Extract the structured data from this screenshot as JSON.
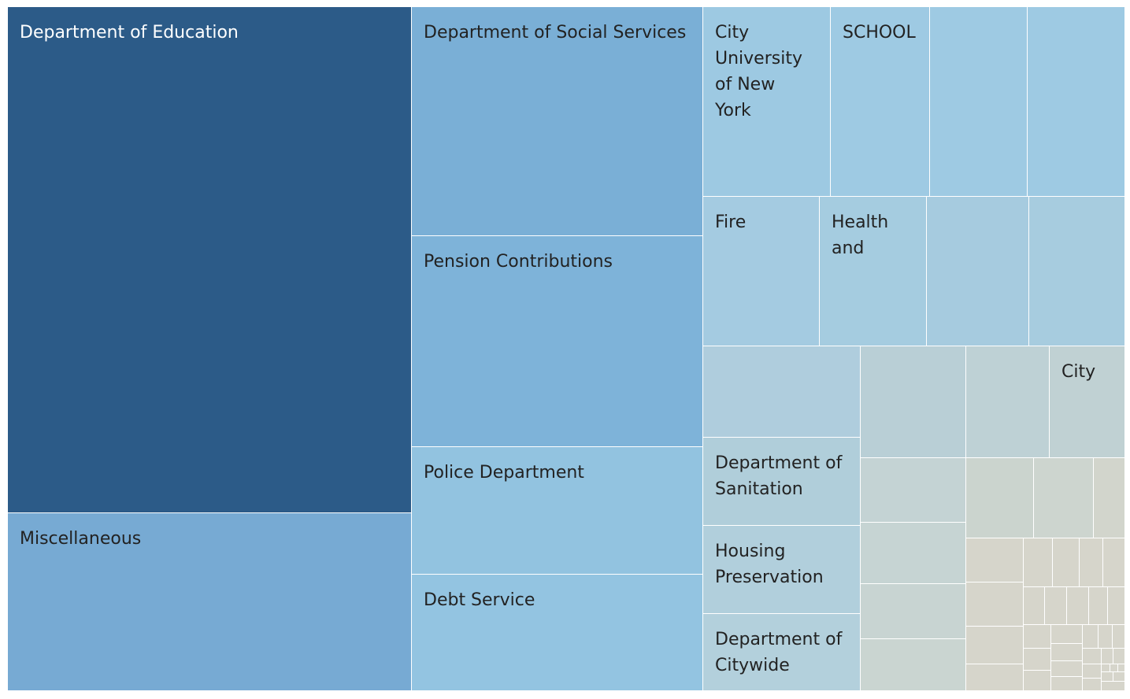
{
  "chart_data": {
    "type": "treemap",
    "title": "",
    "legend": "none",
    "items": [
      {
        "label": "Department of Education",
        "color": "#2c5b88",
        "text_color": "light",
        "lines": [
          "Department of Education"
        ]
      },
      {
        "label": "Miscellaneous",
        "color": "#77aad3",
        "text_color": "dark",
        "lines": [
          "Miscellaneous"
        ]
      },
      {
        "label": "Department of Social Services",
        "color": "#7aafd6",
        "text_color": "dark",
        "lines": [
          "Department of Social Services"
        ]
      },
      {
        "label": "Pension Contributions",
        "color": "#7eb3d9",
        "text_color": "dark",
        "lines": [
          "Pension Contributions"
        ]
      },
      {
        "label": "Police Department",
        "color": "#92c3e0",
        "text_color": "dark",
        "lines": [
          "Police Department"
        ]
      },
      {
        "label": "Debt Service",
        "color": "#93c4e1",
        "text_color": "dark",
        "lines": [
          "Debt Service"
        ]
      },
      {
        "label": "City University of New York",
        "color": "#9dc9e2",
        "text_color": "dark",
        "lines": [
          "City",
          "University",
          "of New",
          "York"
        ]
      },
      {
        "label": "SCHOOL",
        "color": "#9ecae3",
        "text_color": "dark",
        "lines": [
          "SCHOOL"
        ]
      },
      {
        "label": "",
        "color": "#9ecae3",
        "text_color": "dark",
        "lines": []
      },
      {
        "label": "",
        "color": "#9ecae3",
        "text_color": "dark",
        "lines": []
      },
      {
        "label": "Fire",
        "color": "#a4cbe1",
        "text_color": "dark",
        "lines": [
          "Fire"
        ]
      },
      {
        "label": "Health and",
        "color": "#a5cce0",
        "text_color": "dark",
        "lines": [
          "Health",
          "and"
        ]
      },
      {
        "label": "",
        "color": "#a6cbdf",
        "text_color": "dark",
        "lines": []
      },
      {
        "label": "",
        "color": "#a7ccdf",
        "text_color": "dark",
        "lines": []
      },
      {
        "label": "",
        "color": "#afcddd",
        "text_color": "dark",
        "lines": []
      },
      {
        "label": "Department of Sanitation",
        "color": "#b0ceda",
        "text_color": "dark",
        "lines": [
          "Department of",
          "Sanitation"
        ]
      },
      {
        "label": "Housing Preservation",
        "color": "#b1cfdc",
        "text_color": "dark",
        "lines": [
          "Housing",
          "Preservation"
        ]
      },
      {
        "label": "Department of Citywide",
        "color": "#b3d0dc",
        "text_color": "dark",
        "lines": [
          "Department of",
          "Citywide"
        ]
      },
      {
        "label": "",
        "color": "#b9cfd6",
        "text_color": "dark",
        "lines": []
      },
      {
        "label": "",
        "color": "#bed1d5",
        "text_color": "dark",
        "lines": []
      },
      {
        "label": "City",
        "color": "#c0d1d3",
        "text_color": "dark",
        "lines": [
          "City"
        ]
      },
      {
        "label": "",
        "color": "#c4d3d4",
        "text_color": "dark",
        "lines": []
      },
      {
        "label": "",
        "color": "#c6d4d3",
        "text_color": "dark",
        "lines": []
      },
      {
        "label": "",
        "color": "#c8d4d2",
        "text_color": "dark",
        "lines": []
      },
      {
        "label": "",
        "color": "#cad5d1",
        "text_color": "dark",
        "lines": []
      },
      {
        "label": "",
        "color": "#cbd4ce",
        "text_color": "dark",
        "lines": []
      },
      {
        "label": "",
        "color": "#cdd5cf",
        "text_color": "dark",
        "lines": []
      },
      {
        "label": "",
        "color": "#d2d5cc",
        "text_color": "dark",
        "lines": []
      }
    ],
    "minor_item_count": 34,
    "minor_item_color": "#d6d5cb"
  }
}
